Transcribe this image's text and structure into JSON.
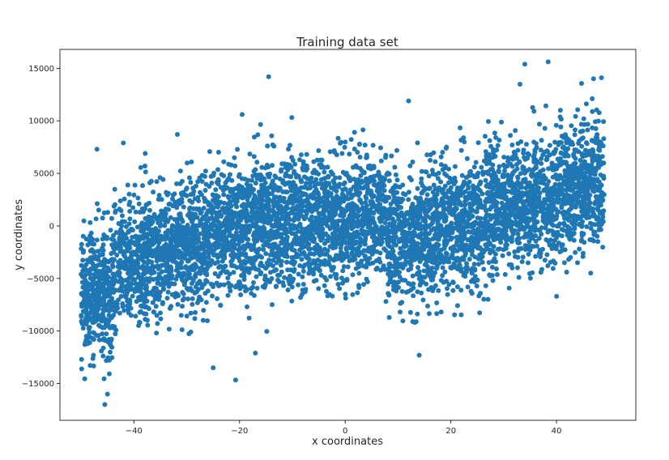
{
  "chart_data": {
    "type": "scatter",
    "title": "Training data set",
    "xlabel": "x coordinates",
    "ylabel": "y coordinates",
    "xlim": [
      -54,
      55
    ],
    "ylim": [
      -18500,
      16800
    ],
    "xticks": [
      -40,
      -20,
      0,
      20,
      40
    ],
    "yticks": [
      -15000,
      -10000,
      -5000,
      0,
      5000,
      10000,
      15000
    ],
    "xtick_labels": [
      "−40",
      "−20",
      "0",
      "20",
      "40"
    ],
    "ytick_labels": [
      "−15000",
      "−10000",
      "−5000",
      "0",
      "5000",
      "10000",
      "15000"
    ],
    "grid": false,
    "marker_color": "#1f77b4",
    "model": {
      "x_range": [
        -50,
        49
      ],
      "n_points": 6000,
      "components": [
        {
          "x_from": -50,
          "x_to": -44,
          "y_base": -6800,
          "slope_per_unit": 0
        },
        {
          "x_from": -44,
          "x_to": -20,
          "y_base": -4000,
          "slope_per_unit": 160
        },
        {
          "x_from": -20,
          "x_to": 8,
          "y_base": 0,
          "slope_per_unit": 30
        },
        {
          "x_from": 8,
          "x_to": 49,
          "y_base": -1500,
          "slope_per_unit": 140
        }
      ],
      "spread_sd": 3000
    },
    "outliers": [
      {
        "x": -14.5,
        "y": 14200
      },
      {
        "x": 34,
        "y": 15400
      },
      {
        "x": -45.5,
        "y": -17000
      },
      {
        "x": -45,
        "y": -16000
      },
      {
        "x": -25,
        "y": -13500
      },
      {
        "x": 14,
        "y": -12300
      },
      {
        "x": -17,
        "y": -12100
      },
      {
        "x": 12,
        "y": 11900
      },
      {
        "x": -19.5,
        "y": 10600
      },
      {
        "x": 48.5,
        "y": 14100
      },
      {
        "x": 47,
        "y": 14000
      },
      {
        "x": 40,
        "y": -6700
      },
      {
        "x": -47,
        "y": 7300
      },
      {
        "x": -42,
        "y": 7900
      }
    ]
  }
}
